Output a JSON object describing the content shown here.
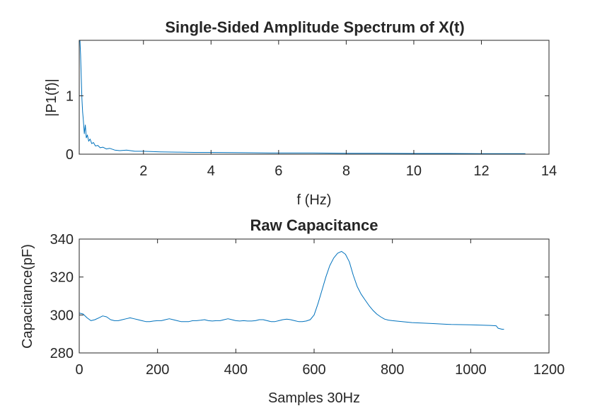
{
  "chart_data": [
    {
      "type": "line",
      "title": "Single-Sided Amplitude Spectrum of X(t)",
      "xlabel": "f (Hz)",
      "ylabel": "|P1(f)|",
      "xlim": [
        0.1,
        14
      ],
      "ylim": [
        0,
        1.95
      ],
      "xticks": [
        2,
        4,
        6,
        8,
        10,
        12,
        14
      ],
      "yticks": [
        0,
        1
      ],
      "grid": false,
      "series": [
        {
          "color": "#0072BD",
          "x": [
            0.12,
            0.14,
            0.16,
            0.18,
            0.2,
            0.22,
            0.25,
            0.28,
            0.31,
            0.34,
            0.38,
            0.42,
            0.47,
            0.52,
            0.58,
            0.65,
            0.72,
            0.8,
            0.9,
            1.0,
            1.15,
            1.3,
            1.5,
            1.75,
            2.0,
            2.5,
            3.0,
            3.5,
            4.0,
            5.0,
            6.0,
            7.0,
            8.0,
            9.0,
            10.0,
            11.0,
            12.0,
            13.0,
            13.3
          ],
          "values": [
            1.95,
            1.7,
            1.3,
            0.95,
            0.72,
            0.6,
            0.35,
            0.5,
            0.28,
            0.33,
            0.22,
            0.26,
            0.18,
            0.2,
            0.14,
            0.15,
            0.11,
            0.12,
            0.09,
            0.1,
            0.07,
            0.06,
            0.07,
            0.05,
            0.05,
            0.04,
            0.035,
            0.03,
            0.03,
            0.025,
            0.02,
            0.02,
            0.015,
            0.015,
            0.012,
            0.012,
            0.01,
            0.01,
            0.008
          ]
        }
      ]
    },
    {
      "type": "line",
      "title": "Raw Capacitance",
      "xlabel": "Samples 30Hz",
      "ylabel": "Capacitance(pF)",
      "xlim": [
        0,
        1200
      ],
      "ylim": [
        280,
        340
      ],
      "xticks": [
        0,
        200,
        400,
        600,
        800,
        1000,
        1200
      ],
      "yticks": [
        280,
        300,
        320,
        340
      ],
      "grid": false,
      "series": [
        {
          "color": "#0072BD",
          "x": [
            0,
            10,
            20,
            30,
            40,
            50,
            60,
            70,
            80,
            90,
            100,
            110,
            120,
            130,
            140,
            150,
            160,
            170,
            180,
            190,
            200,
            210,
            220,
            230,
            240,
            250,
            260,
            270,
            280,
            290,
            300,
            310,
            320,
            330,
            340,
            350,
            360,
            370,
            380,
            390,
            400,
            410,
            420,
            430,
            440,
            450,
            460,
            470,
            480,
            490,
            500,
            510,
            520,
            530,
            540,
            550,
            560,
            570,
            580,
            590,
            600,
            610,
            620,
            630,
            640,
            650,
            660,
            670,
            680,
            690,
            700,
            710,
            720,
            730,
            740,
            750,
            760,
            770,
            780,
            790,
            800,
            850,
            900,
            950,
            1000,
            1050,
            1065,
            1070,
            1080,
            1085
          ],
          "values": [
            301,
            300.5,
            298.5,
            297,
            297.5,
            298.5,
            299.5,
            299,
            297.5,
            297,
            297,
            297.5,
            298,
            298.5,
            298,
            297.5,
            297,
            296.5,
            296.5,
            296.8,
            297,
            297,
            297.5,
            298,
            297.5,
            297,
            296.5,
            296.5,
            296.5,
            297,
            297,
            297.2,
            297.5,
            297,
            296.8,
            297,
            297,
            297.5,
            298,
            297.5,
            297,
            296.8,
            297,
            296.8,
            296.8,
            297,
            297.5,
            297.5,
            297,
            296.5,
            296.5,
            297,
            297.5,
            297.8,
            297.5,
            297,
            296.5,
            296.5,
            296.8,
            297.5,
            300,
            306,
            313,
            320,
            326,
            330,
            332.5,
            333.5,
            332,
            328,
            321,
            315,
            311,
            308,
            305,
            302.5,
            300.5,
            299,
            297.8,
            297.3,
            297,
            296,
            295.5,
            295,
            294.8,
            294.5,
            294.3,
            293,
            292.5,
            292.5
          ]
        }
      ]
    }
  ]
}
